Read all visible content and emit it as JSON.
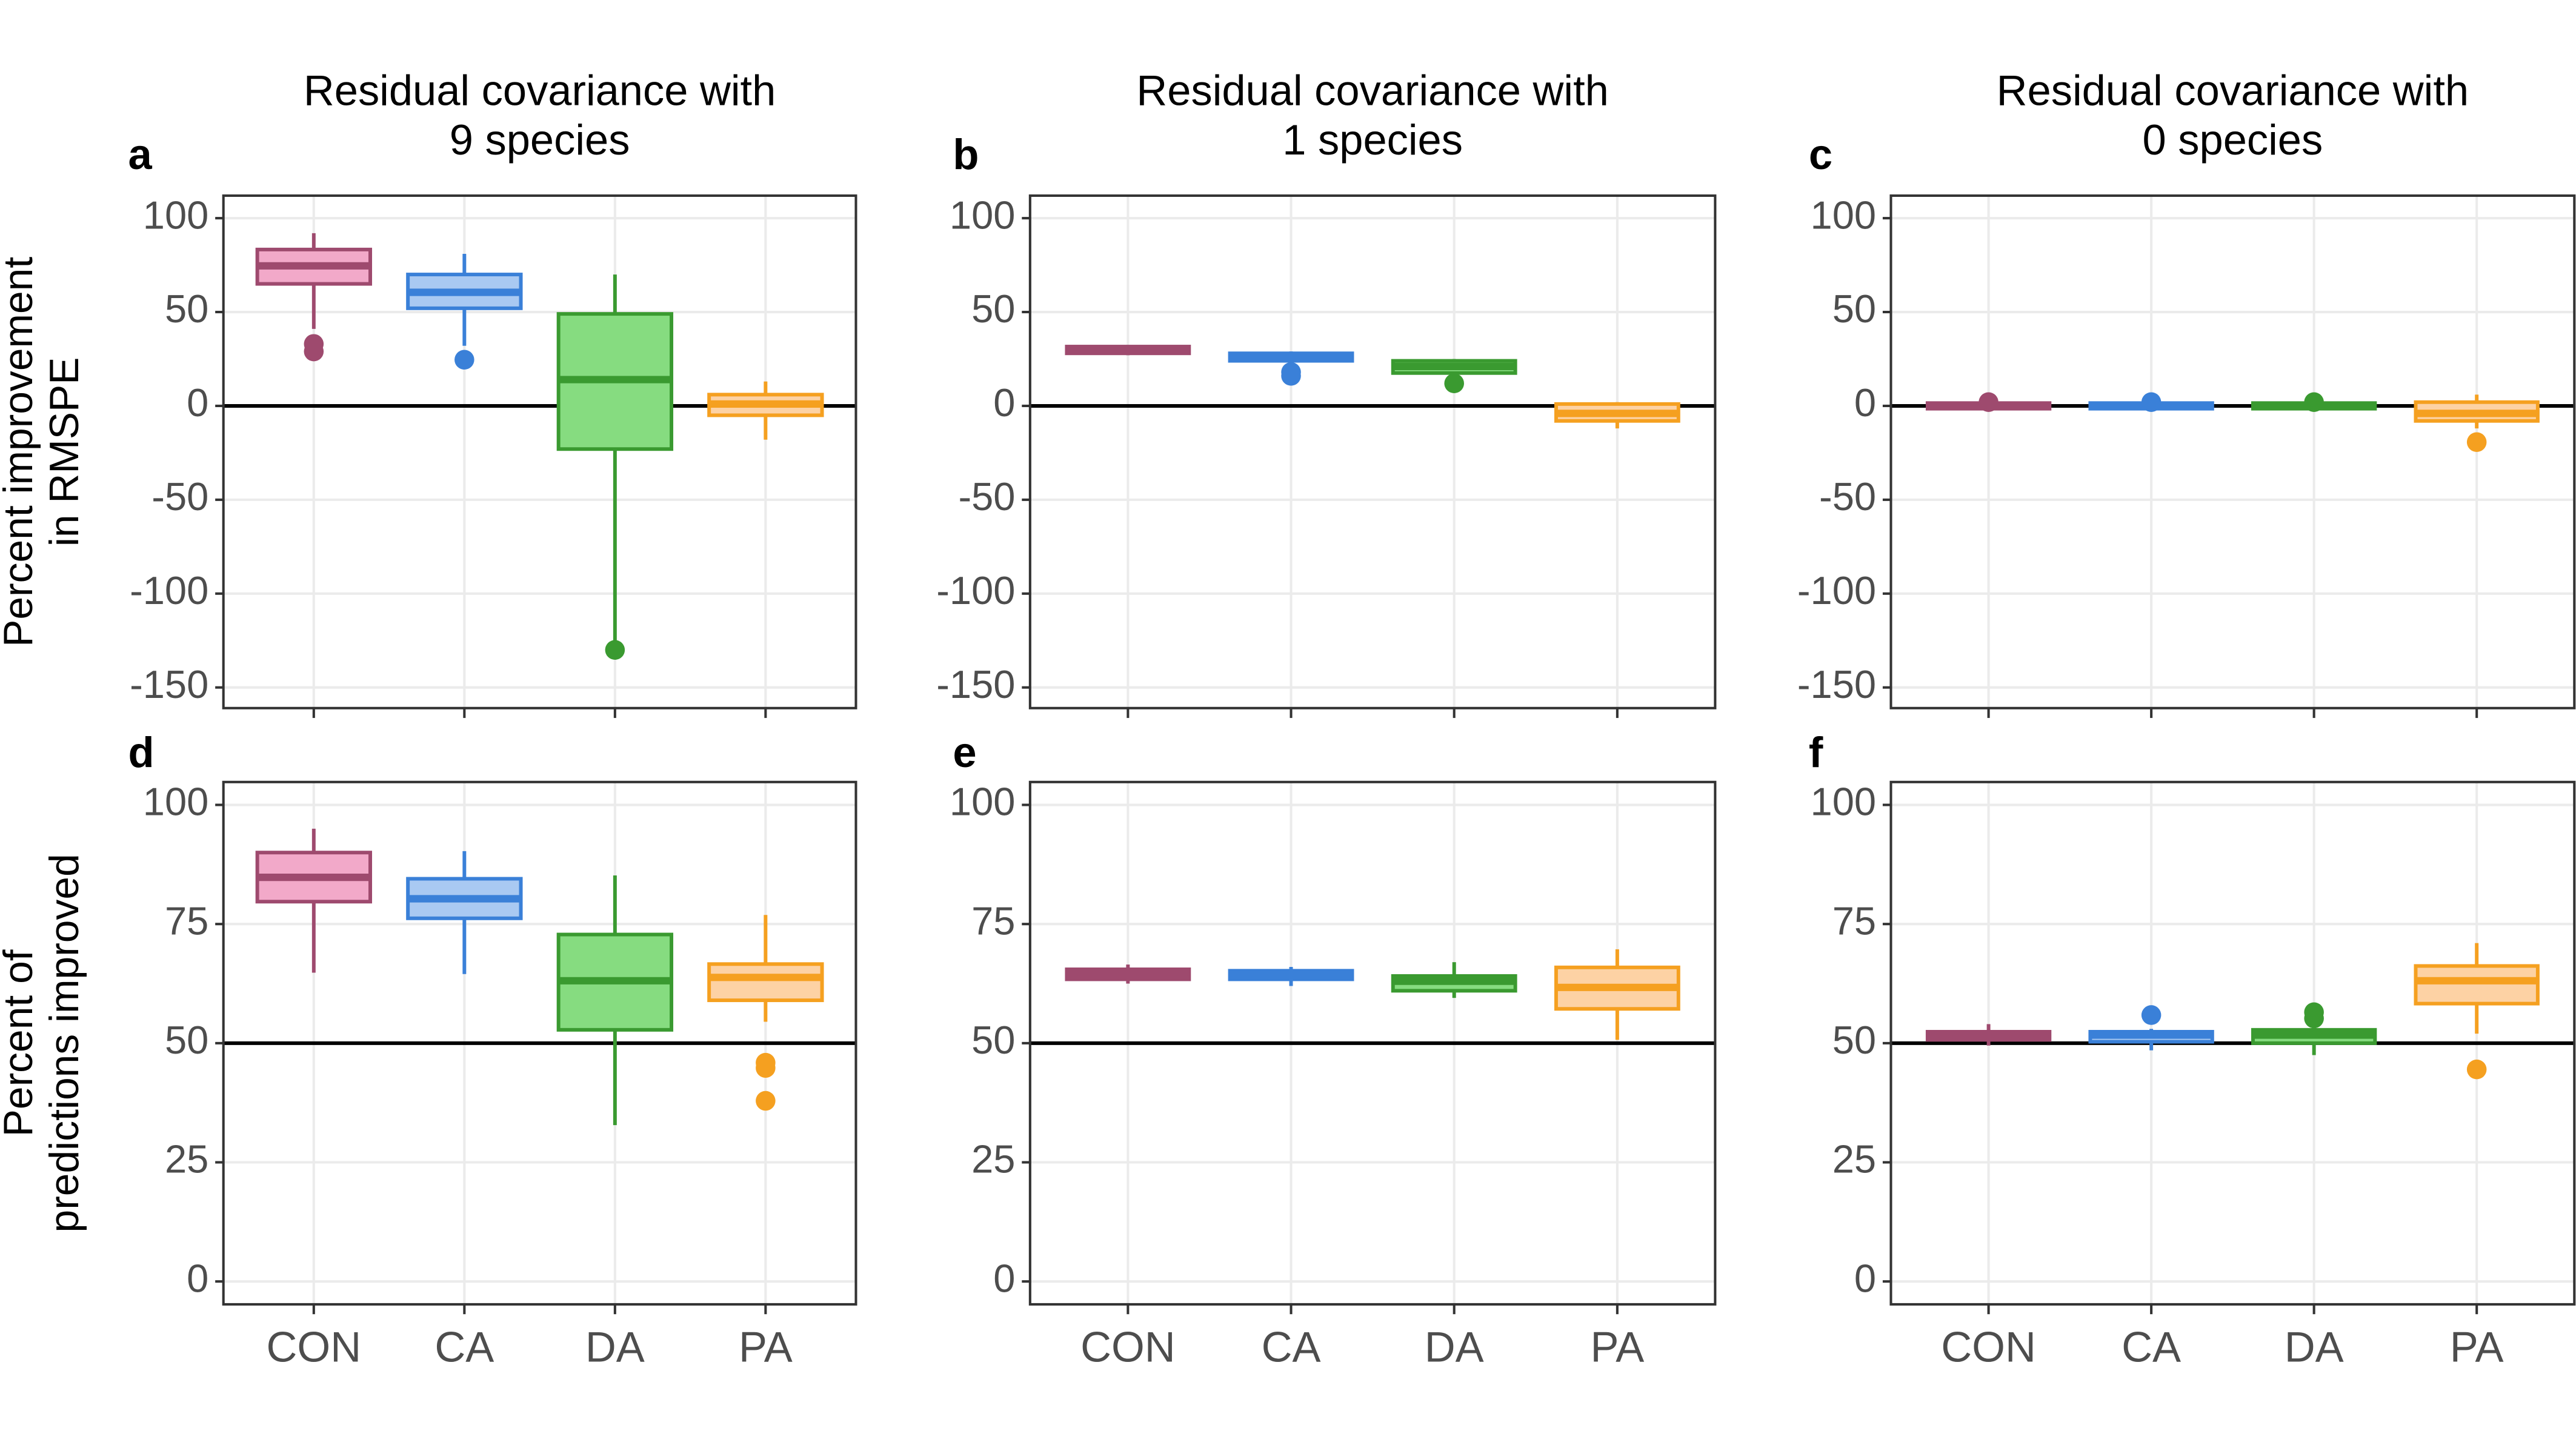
{
  "chart_data": [
    {
      "type": "box",
      "label": "a",
      "title": [
        "Residual covariance with",
        "9 species"
      ],
      "ylabel": [
        "Percent improvement",
        "in RMSPE"
      ],
      "ylim": [
        -161,
        112
      ],
      "yticks": [
        -150,
        -100,
        -50,
        0,
        50,
        100
      ],
      "hline": 0,
      "grid": true,
      "boxes": [
        {
          "low": 41,
          "q1": 65,
          "median": 74.6,
          "q3": 83.3,
          "high": 92,
          "outliers": [
            33,
            29
          ],
          "color": "#9e4a6e",
          "fill": "#f2a9c9"
        },
        {
          "low": 32,
          "q1": 52,
          "median": 60.5,
          "q3": 70,
          "high": 81,
          "outliers": [
            24.6
          ],
          "color": "#3a80d8",
          "fill": "#a9c9f2"
        },
        {
          "low": -125,
          "q1": -23,
          "median": 14,
          "q3": 49,
          "high": 70,
          "outliers": [
            -130
          ],
          "color": "#3a9a30",
          "fill": "#86dc80"
        },
        {
          "low": -18,
          "q1": -5,
          "median": 1,
          "q3": 6,
          "high": 13,
          "outliers": [],
          "color": "#f5a020",
          "fill": "#fdd2a4"
        }
      ]
    },
    {
      "type": "box",
      "label": "b",
      "title": [
        "Residual covariance with",
        "1 species"
      ],
      "ylim": [
        -161,
        112
      ],
      "yticks": [
        -150,
        -100,
        -50,
        0,
        50,
        100
      ],
      "hline": 0,
      "grid": true,
      "boxes": [
        {
          "low": 27,
          "q1": 28,
          "median": 30,
          "q3": 31.6,
          "high": 32,
          "outliers": [],
          "color": "#9e4a6e",
          "fill": "#f2a9c9"
        },
        {
          "low": 22,
          "q1": 24,
          "median": 26,
          "q3": 28,
          "high": 29,
          "outliers": [
            18,
            16
          ],
          "color": "#3a80d8",
          "fill": "#a9c9f2"
        },
        {
          "low": 16,
          "q1": 17.5,
          "median": 21,
          "q3": 24,
          "high": 25,
          "outliers": [
            12
          ],
          "color": "#3a9a30",
          "fill": "#86dc80"
        },
        {
          "low": -12,
          "q1": -8,
          "median": -4,
          "q3": 1,
          "high": 2,
          "outliers": [],
          "color": "#f5a020",
          "fill": "#fdd2a4"
        }
      ]
    },
    {
      "type": "box",
      "label": "c",
      "title": [
        "Residual covariance with",
        "0 species"
      ],
      "ylim": [
        -161,
        112
      ],
      "yticks": [
        -150,
        -100,
        -50,
        0,
        50,
        100
      ],
      "hline": 0,
      "grid": true,
      "boxes": [
        {
          "low": -2,
          "q1": -1.5,
          "median": 0,
          "q3": 1.5,
          "high": 2,
          "outliers": [
            2
          ],
          "color": "#9e4a6e",
          "fill": "#f2a9c9"
        },
        {
          "low": -2,
          "q1": -1.5,
          "median": 0,
          "q3": 1.5,
          "high": 2,
          "outliers": [
            2
          ],
          "color": "#3a80d8",
          "fill": "#a9c9f2"
        },
        {
          "low": -2,
          "q1": -1.5,
          "median": 0,
          "q3": 1.5,
          "high": 2,
          "outliers": [
            2
          ],
          "color": "#3a9a30",
          "fill": "#86dc80"
        },
        {
          "low": -12,
          "q1": -8,
          "median": -4,
          "q3": 2,
          "high": 6,
          "outliers": [
            -19.3
          ],
          "color": "#f5a020",
          "fill": "#fdd2a4"
        }
      ]
    },
    {
      "type": "box",
      "label": "d",
      "ylabel": [
        "Percent of",
        "predictions improved"
      ],
      "categories": [
        "CON",
        "CA",
        "DA",
        "PA"
      ],
      "ylim": [
        -4.8,
        104.8
      ],
      "yticks": [
        0,
        25,
        50,
        75,
        100
      ],
      "hline": 50,
      "grid": true,
      "boxes": [
        {
          "low": 64.8,
          "q1": 79.7,
          "median": 84.8,
          "q3": 90,
          "high": 95,
          "outliers": [],
          "color": "#9e4a6e",
          "fill": "#f2a9c9"
        },
        {
          "low": 64.5,
          "q1": 76.2,
          "median": 80.3,
          "q3": 84.5,
          "high": 90.3,
          "outliers": [],
          "color": "#3a80d8",
          "fill": "#a9c9f2"
        },
        {
          "low": 32.8,
          "q1": 52.8,
          "median": 63.1,
          "q3": 72.8,
          "high": 85.2,
          "outliers": [],
          "color": "#3a9a30",
          "fill": "#86dc80"
        },
        {
          "low": 54.5,
          "q1": 59,
          "median": 63.8,
          "q3": 66.6,
          "high": 76.9,
          "outliers": [
            45.9,
            44.8,
            37.9
          ],
          "color": "#f5a020",
          "fill": "#fdd2a4"
        }
      ]
    },
    {
      "type": "box",
      "label": "e",
      "categories": [
        "CON",
        "CA",
        "DA",
        "PA"
      ],
      "ylim": [
        -4.8,
        104.8
      ],
      "yticks": [
        0,
        25,
        50,
        75,
        100
      ],
      "hline": 50,
      "grid": true,
      "boxes": [
        {
          "low": 62.5,
          "q1": 63.4,
          "median": 64.5,
          "q3": 65.5,
          "high": 66.5,
          "outliers": [],
          "color": "#9e4a6e",
          "fill": "#f2a9c9"
        },
        {
          "low": 62,
          "q1": 63.4,
          "median": 64.1,
          "q3": 65.2,
          "high": 66,
          "outliers": [],
          "color": "#3a80d8",
          "fill": "#a9c9f2"
        },
        {
          "low": 59.5,
          "q1": 61,
          "median": 63,
          "q3": 64.1,
          "high": 67,
          "outliers": [],
          "color": "#3a9a30",
          "fill": "#86dc80"
        },
        {
          "low": 50.7,
          "q1": 57.2,
          "median": 61.7,
          "q3": 65.9,
          "high": 69.7,
          "outliers": [],
          "color": "#f5a020",
          "fill": "#fdd2a4"
        }
      ]
    },
    {
      "type": "box",
      "label": "f",
      "categories": [
        "CON",
        "CA",
        "DA",
        "PA"
      ],
      "ylim": [
        -4.8,
        104.8
      ],
      "yticks": [
        0,
        25,
        50,
        75,
        100
      ],
      "hline": 50,
      "grid": true,
      "boxes": [
        {
          "low": 49.5,
          "q1": 50.7,
          "median": 51.5,
          "q3": 52.4,
          "high": 54,
          "outliers": [],
          "color": "#9e4a6e",
          "fill": "#f2a9c9"
        },
        {
          "low": 48.5,
          "q1": 50.3,
          "median": 51.7,
          "q3": 52.4,
          "high": 53,
          "outliers": [
            55.9
          ],
          "color": "#3a80d8",
          "fill": "#a9c9f2"
        },
        {
          "low": 47.5,
          "q1": 50,
          "median": 51.7,
          "q3": 52.8,
          "high": 53.5,
          "outliers": [
            56.5,
            55.2
          ],
          "color": "#3a9a30",
          "fill": "#86dc80"
        },
        {
          "low": 52,
          "q1": 58.3,
          "median": 63.1,
          "q3": 66.2,
          "high": 71,
          "outliers": [
            44.5
          ],
          "color": "#f5a020",
          "fill": "#fdd2a4"
        }
      ]
    }
  ]
}
